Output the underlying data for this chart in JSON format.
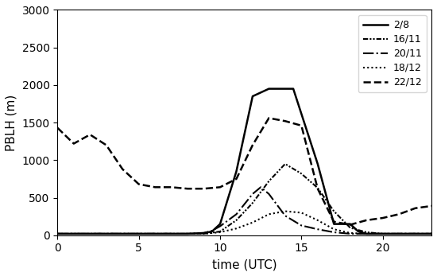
{
  "series": {
    "2/8": {
      "x": [
        0,
        1,
        2,
        3,
        4,
        5,
        6,
        7,
        8,
        9,
        9.5,
        10,
        11,
        12,
        13,
        14,
        14.5,
        16,
        17,
        18,
        18.5,
        19,
        20,
        21,
        22,
        23
      ],
      "y": [
        20,
        20,
        20,
        20,
        20,
        20,
        20,
        20,
        20,
        30,
        50,
        150,
        850,
        1850,
        1950,
        1950,
        1950,
        950,
        150,
        150,
        50,
        20,
        20,
        20,
        20,
        20
      ],
      "linestyle": "solid",
      "linewidth": 1.8
    },
    "16/11": {
      "x": [
        0,
        1,
        2,
        3,
        4,
        5,
        6,
        7,
        8,
        9,
        10,
        11,
        12,
        13,
        14,
        15,
        16,
        17,
        18,
        19,
        20,
        21,
        22,
        23
      ],
      "y": [
        20,
        20,
        20,
        20,
        20,
        20,
        20,
        20,
        20,
        20,
        50,
        200,
        430,
        720,
        950,
        820,
        630,
        320,
        100,
        40,
        20,
        20,
        20,
        20
      ],
      "linestyle": "dashdotdot",
      "linewidth": 1.5
    },
    "20/11": {
      "x": [
        0,
        1,
        2,
        3,
        4,
        5,
        6,
        7,
        8,
        9,
        9.5,
        10,
        11,
        12,
        12.5,
        13,
        14,
        15,
        16,
        17,
        18,
        19,
        20,
        21,
        22,
        23
      ],
      "y": [
        20,
        20,
        20,
        20,
        20,
        20,
        20,
        20,
        20,
        30,
        60,
        120,
        280,
        550,
        640,
        550,
        260,
        130,
        80,
        40,
        20,
        20,
        20,
        20,
        20,
        20
      ],
      "linestyle": "dashdot",
      "linewidth": 1.5
    },
    "18/12": {
      "x": [
        0,
        1,
        2,
        3,
        4,
        5,
        6,
        7,
        8,
        9,
        10,
        11,
        12,
        13,
        14,
        15,
        16,
        17,
        18,
        19,
        20,
        21,
        22,
        23
      ],
      "y": [
        20,
        20,
        20,
        20,
        20,
        20,
        20,
        20,
        20,
        20,
        40,
        90,
        170,
        280,
        320,
        300,
        200,
        80,
        30,
        20,
        20,
        20,
        20,
        20
      ],
      "linestyle": "dotted",
      "linewidth": 1.5
    },
    "22/12": {
      "x": [
        0,
        1,
        2,
        3,
        4,
        5,
        6,
        7,
        8,
        9,
        10,
        11,
        12,
        13,
        14,
        15,
        16,
        17,
        18,
        19,
        20,
        21,
        22,
        23
      ],
      "y": [
        1430,
        1220,
        1340,
        1200,
        880,
        680,
        640,
        640,
        620,
        620,
        640,
        750,
        1200,
        1560,
        1520,
        1460,
        620,
        180,
        140,
        200,
        230,
        280,
        360,
        390
      ],
      "linestyle": "dashed",
      "linewidth": 1.8
    }
  },
  "xlabel": "time (UTC)",
  "ylabel": "PBLH (m)",
  "xlim": [
    0,
    23
  ],
  "ylim": [
    0,
    3000
  ],
  "xticks": [
    0,
    5,
    10,
    15,
    20
  ],
  "yticks": [
    0,
    500,
    1000,
    1500,
    2000,
    2500,
    3000
  ],
  "legend_order": [
    "2/8",
    "16/11",
    "20/11",
    "18/12",
    "22/12"
  ],
  "legend_loc": "upper right",
  "figsize": [
    5.5,
    3.47
  ],
  "dpi": 100
}
